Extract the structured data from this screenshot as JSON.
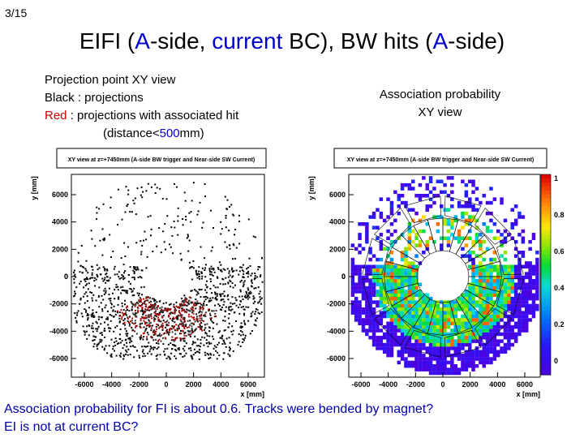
{
  "page_number": "3/15",
  "title": {
    "p1": "EIFI (",
    "a1": "A",
    "p2": "-side, ",
    "current": "current",
    "p3": " BC), BW hits (",
    "a2": "A",
    "p4": "-side)"
  },
  "left_notes": {
    "line1": "Projection point XY view",
    "line2": "Black : projections",
    "red_word": "Red",
    "line3_rest": " : projections with associated hit",
    "dist_prefix": "(distance<",
    "dist_value": "500",
    "dist_suffix": "mm)"
  },
  "right_notes": {
    "line1": "Association probability",
    "line2": "XY view"
  },
  "bottom_text": {
    "line1": "Association probability for FI is about 0.6. Tracks were bended by magnet?",
    "line2": "EI is not at current BC?"
  },
  "chart_data": [
    {
      "type": "scatter",
      "title": "XY view at z=+7450mm (A-side BW trigger and Near-side SW Current)",
      "xlabel": "x [mm]",
      "ylabel": "y [mm]",
      "xlim": [
        -7000,
        7000
      ],
      "ylim": [
        -8000,
        8000
      ],
      "x_ticks": [
        "-6000",
        "-4000",
        "-2000",
        "0",
        "2000",
        "4000",
        "6000"
      ],
      "y_ticks": [
        "6000",
        "4000",
        "2000",
        "0",
        "-2000",
        "-4000",
        "-6000"
      ],
      "series": [
        {
          "name": "projections",
          "color": "#000000"
        },
        {
          "name": "projections with associated hit",
          "color": "#cc0000"
        }
      ]
    },
    {
      "type": "heatmap",
      "title": "XY view at z=+7450mm (A-side BW trigger and Near-side SW Current)",
      "xlabel": "x [mm]",
      "ylabel": "y [mm]",
      "xlim": [
        -7000,
        7000
      ],
      "ylim": [
        -8000,
        8000
      ],
      "x_ticks": [
        "-6000",
        "-4000",
        "-2000",
        "0",
        "2000",
        "4000",
        "6000"
      ],
      "y_ticks": [
        "6000",
        "4000",
        "2000",
        "0",
        "-2000",
        "-4000",
        "-6000"
      ],
      "zlim": [
        0,
        1
      ],
      "color_ticks": [
        "1",
        "0.8",
        "0.6",
        "0.4",
        "0.2",
        "0"
      ]
    }
  ]
}
